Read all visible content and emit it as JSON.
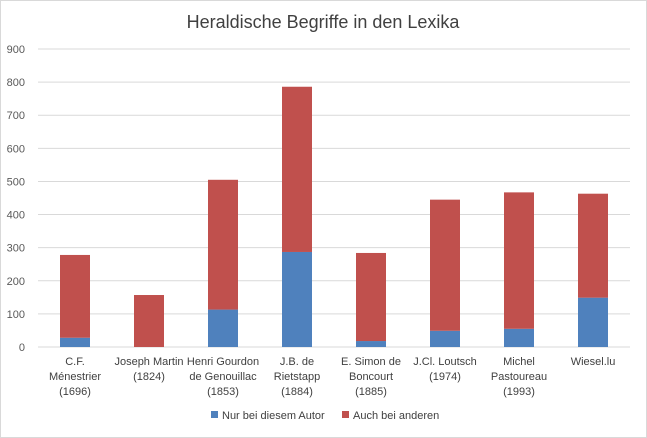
{
  "chart_data": {
    "type": "bar",
    "stacked": true,
    "title": "Heraldische Begriffe in den Lexika",
    "xlabel": "",
    "ylabel": "",
    "ylim": [
      0,
      900
    ],
    "yticks": [
      0,
      100,
      200,
      300,
      400,
      500,
      600,
      700,
      800,
      900
    ],
    "grid": true,
    "legend_position": "bottom",
    "categories": [
      [
        "C.F.",
        "Ménestrier",
        "(1696)"
      ],
      [
        "Joseph Martin",
        "(1824)"
      ],
      [
        "Henri Gourdon",
        "de Genouillac",
        "(1853)"
      ],
      [
        "J.B. de",
        "Rietstapp",
        "(1884)"
      ],
      [
        "E. Simon de",
        "Boncourt",
        "(1885)"
      ],
      [
        "J.Cl. Loutsch",
        "(1974)"
      ],
      [
        "Michel",
        "Pastoureau",
        "(1993)"
      ],
      [
        "Wiesel.lu"
      ]
    ],
    "series": [
      {
        "name": "Nur bei diesem Autor",
        "color": "#4f81bd",
        "values": [
          28,
          0,
          113,
          287,
          18,
          49,
          55,
          149
        ]
      },
      {
        "name": "Auch bei anderen",
        "color": "#c0504d",
        "values": [
          250,
          157,
          392,
          499,
          266,
          396,
          412,
          314
        ]
      }
    ]
  }
}
